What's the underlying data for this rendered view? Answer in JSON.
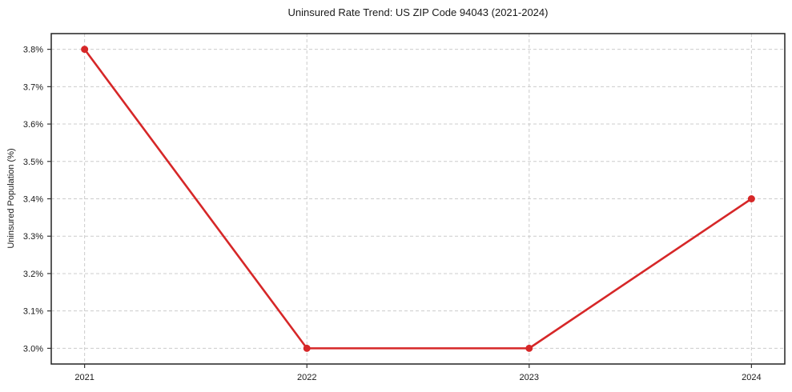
{
  "chart_data": {
    "type": "line",
    "title": "Uninsured Rate Trend: US ZIP Code 94043 (2021-2024)",
    "xlabel": "",
    "ylabel": "Uninsured Population (%)",
    "x": [
      2021,
      2022,
      2023,
      2024
    ],
    "values": [
      3.8,
      3.0,
      3.0,
      3.4
    ],
    "xlim": [
      2020.85,
      2024.15
    ],
    "ylim": [
      2.958,
      3.842
    ],
    "xticks": [
      {
        "value": 2021,
        "label": "2021"
      },
      {
        "value": 2022,
        "label": "2022"
      },
      {
        "value": 2023,
        "label": "2023"
      },
      {
        "value": 2024,
        "label": "2024"
      }
    ],
    "yticks": [
      {
        "value": 3.0,
        "label": "3.0%"
      },
      {
        "value": 3.1,
        "label": "3.1%"
      },
      {
        "value": 3.2,
        "label": "3.2%"
      },
      {
        "value": 3.3,
        "label": "3.3%"
      },
      {
        "value": 3.4,
        "label": "3.4%"
      },
      {
        "value": 3.5,
        "label": "3.5%"
      },
      {
        "value": 3.6,
        "label": "3.6%"
      },
      {
        "value": 3.7,
        "label": "3.7%"
      },
      {
        "value": 3.8,
        "label": "3.8%"
      }
    ],
    "grid": true,
    "grid_style": "dashed",
    "legend_position": "none",
    "marker": "circle",
    "colors": {
      "line": "#d62728",
      "marker": "#d62728",
      "grid": "#cccccc",
      "spine": "#222222",
      "tick": "#333333",
      "text": "#1a1a1a",
      "background": "#ffffff"
    }
  }
}
